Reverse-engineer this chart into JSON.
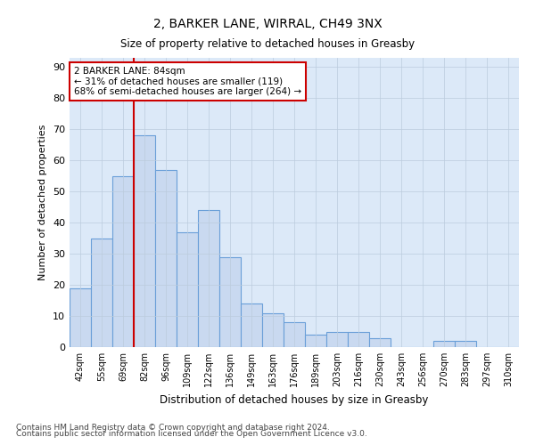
{
  "title_line1": "2, BARKER LANE, WIRRAL, CH49 3NX",
  "title_line2": "Size of property relative to detached houses in Greasby",
  "xlabel": "Distribution of detached houses by size in Greasby",
  "ylabel": "Number of detached properties",
  "categories": [
    "42sqm",
    "55sqm",
    "69sqm",
    "82sqm",
    "96sqm",
    "109sqm",
    "122sqm",
    "136sqm",
    "149sqm",
    "163sqm",
    "176sqm",
    "189sqm",
    "203sqm",
    "216sqm",
    "230sqm",
    "243sqm",
    "256sqm",
    "270sqm",
    "283sqm",
    "297sqm",
    "310sqm"
  ],
  "values": [
    19,
    35,
    55,
    68,
    57,
    37,
    44,
    29,
    14,
    11,
    8,
    4,
    5,
    5,
    3,
    0,
    0,
    2,
    2,
    0,
    0
  ],
  "bar_color": "#c9d9f0",
  "bar_edge_color": "#6a9fd8",
  "bar_linewidth": 0.8,
  "vline_color": "#cc0000",
  "vline_linewidth": 1.5,
  "vline_x": 3.5,
  "annotation_line1": "2 BARKER LANE: 84sqm",
  "annotation_line2": "← 31% of detached houses are smaller (119)",
  "annotation_line3": "68% of semi-detached houses are larger (264) →",
  "annotation_box_color": "white",
  "annotation_box_edgecolor": "#cc0000",
  "annotation_fontsize": 7.5,
  "ylim": [
    0,
    93
  ],
  "yticks": [
    0,
    10,
    20,
    30,
    40,
    50,
    60,
    70,
    80,
    90
  ],
  "grid_color": "#bbccdd",
  "grid_linewidth": 0.5,
  "plot_background_color": "#dce9f8",
  "footer_line1": "Contains HM Land Registry data © Crown copyright and database right 2024.",
  "footer_line2": "Contains public sector information licensed under the Open Government Licence v3.0.",
  "footer_fontsize": 6.5
}
